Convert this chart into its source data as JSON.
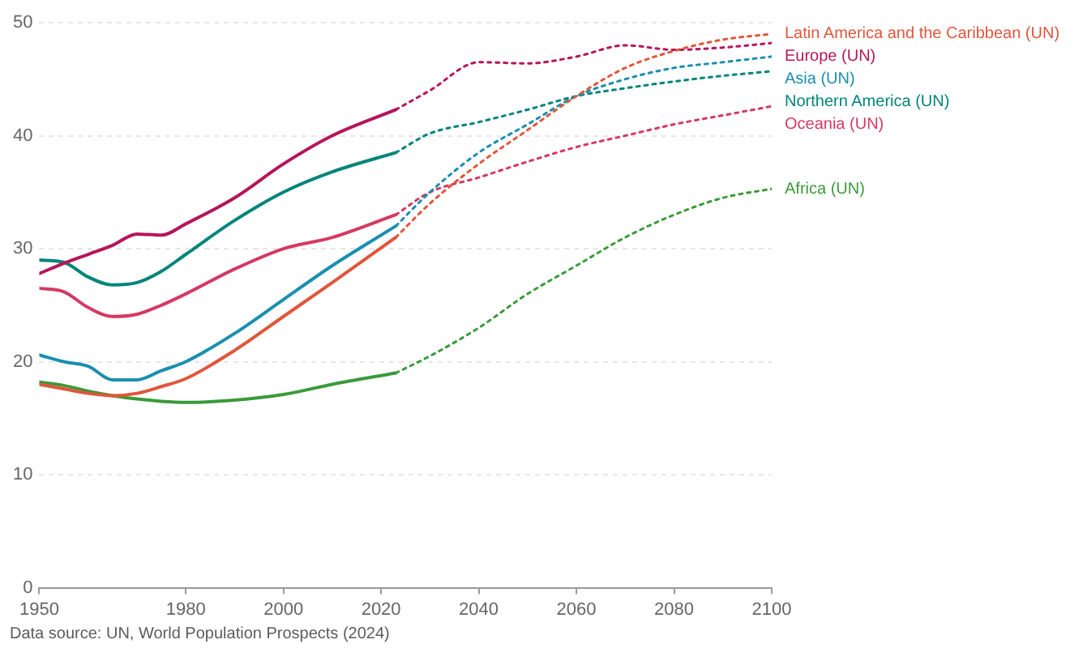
{
  "chart_data": {
    "type": "line",
    "xlim": [
      1950,
      2100
    ],
    "xticks": [
      1950,
      1980,
      2000,
      2020,
      2040,
      2060,
      2080,
      2100
    ],
    "ylim": [
      0,
      50
    ],
    "yticks": [
      0,
      10,
      20,
      30,
      40,
      50
    ],
    "grid": "y",
    "marker": "none",
    "annotations": [
      "Data source: UN, World Population Prospects (2024)"
    ],
    "series": [
      {
        "name": "Latin America and the Caribbean (UN)",
        "color": "#e0563b",
        "x": [
          1950,
          1955,
          1960,
          1965,
          1970,
          1975,
          1980,
          1990,
          2000,
          2010,
          2023
        ],
        "values": [
          18,
          17.6,
          17.2,
          17,
          17.2,
          17.8,
          18.5,
          21,
          24,
          27,
          31
        ]
      },
      {
        "name": "Europe (UN)",
        "color": "#b5165a",
        "x": [
          1950,
          1955,
          1960,
          1965,
          1970,
          1975,
          1980,
          1990,
          2000,
          2010,
          2023
        ],
        "values": [
          27.8,
          28.7,
          29.5,
          30.3,
          31.3,
          31.2,
          32.2,
          34.5,
          37.5,
          40,
          42.3
        ]
      },
      {
        "name": "Asia (UN)",
        "color": "#1a8fb0",
        "x": [
          1950,
          1955,
          1960,
          1965,
          1970,
          1975,
          1980,
          1990,
          2000,
          2010,
          2023
        ],
        "values": [
          20.6,
          20,
          19.6,
          18.4,
          18.4,
          19.2,
          20,
          22.5,
          25.5,
          28.5,
          32
        ]
      },
      {
        "name": "Northern America (UN)",
        "color": "#00857a",
        "x": [
          1950,
          1955,
          1960,
          1965,
          1970,
          1975,
          1980,
          1990,
          2000,
          2010,
          2023
        ],
        "values": [
          29,
          28.8,
          27.5,
          26.8,
          27,
          28,
          29.5,
          32.5,
          35,
          36.8,
          38.5
        ]
      },
      {
        "name": "Oceania (UN)",
        "color": "#d43a63",
        "x": [
          1950,
          1955,
          1960,
          1965,
          1970,
          1975,
          1980,
          1990,
          2000,
          2010,
          2023
        ],
        "values": [
          26.5,
          26.2,
          24.8,
          24,
          24.2,
          25,
          26,
          28.2,
          30,
          31,
          33
        ]
      },
      {
        "name": "Africa (UN)",
        "color": "#3a9a3a",
        "x": [
          1950,
          1955,
          1960,
          1965,
          1970,
          1975,
          1980,
          1990,
          2000,
          2010,
          2023
        ],
        "values": [
          18.2,
          17.9,
          17.4,
          17,
          16.7,
          16.5,
          16.4,
          16.6,
          17.1,
          18,
          19
        ]
      },
      {
        "color": "#e0563b",
        "line_style": "dotted",
        "x": [
          2023,
          2030,
          2040,
          2050,
          2060,
          2070,
          2080,
          2090,
          2100
        ],
        "values": [
          31,
          34,
          37.5,
          40.5,
          43.5,
          46,
          47.5,
          48.5,
          49
        ]
      },
      {
        "color": "#b5165a",
        "line_style": "dotted",
        "x": [
          2023,
          2030,
          2040,
          2050,
          2060,
          2070,
          2080,
          2090,
          2100
        ],
        "values": [
          42.3,
          44,
          46.5,
          46.4,
          47,
          48,
          47.6,
          47.8,
          48.2
        ]
      },
      {
        "color": "#1a8fb0",
        "line_style": "dotted",
        "x": [
          2023,
          2030,
          2040,
          2050,
          2060,
          2070,
          2080,
          2090,
          2100
        ],
        "values": [
          32,
          35,
          38.5,
          41,
          43.5,
          45,
          46,
          46.5,
          47
        ]
      },
      {
        "color": "#00857a",
        "line_style": "dotted",
        "x": [
          2023,
          2030,
          2040,
          2050,
          2060,
          2070,
          2080,
          2090,
          2100
        ],
        "values": [
          38.5,
          40.2,
          41.2,
          42.3,
          43.5,
          44.2,
          44.8,
          45.3,
          45.7
        ]
      },
      {
        "color": "#d43a63",
        "line_style": "dotted",
        "x": [
          2023,
          2030,
          2040,
          2050,
          2060,
          2070,
          2080,
          2090,
          2100
        ],
        "values": [
          33,
          35,
          36.3,
          37.7,
          39,
          40,
          41,
          41.8,
          42.6
        ]
      },
      {
        "color": "#3a9a3a",
        "line_style": "dotted",
        "x": [
          2023,
          2030,
          2040,
          2050,
          2060,
          2070,
          2080,
          2090,
          2100
        ],
        "values": [
          19,
          20.5,
          23,
          26,
          28.5,
          31,
          33,
          34.5,
          35.3
        ]
      }
    ]
  }
}
